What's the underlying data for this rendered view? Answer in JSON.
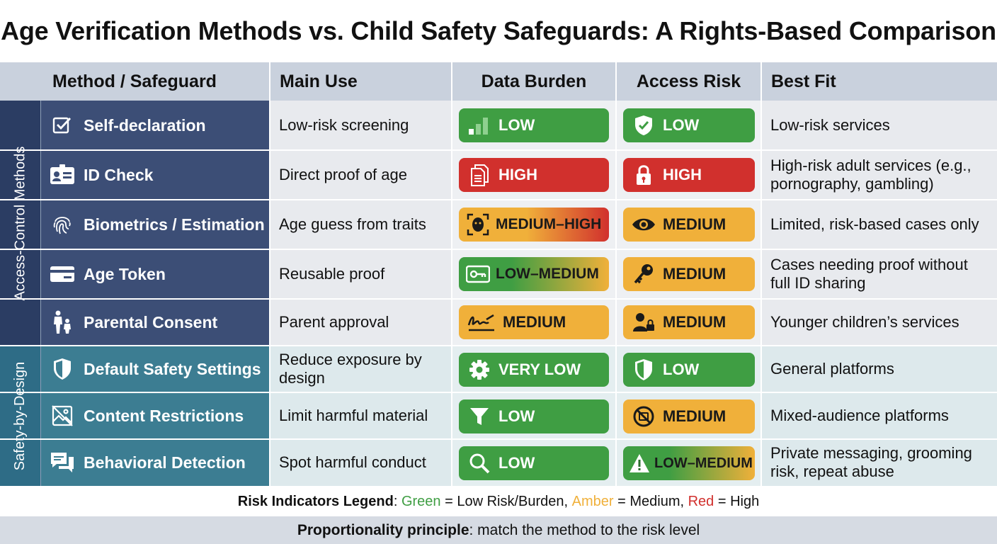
{
  "title": "Age Verification Methods vs. Child Safety Safeguards: A Rights-Based Comparison",
  "headers": {
    "method": "Method / Safeguard",
    "main_use": "Main Use",
    "data_burden": "Data Burden",
    "access_risk": "Access Risk",
    "best_fit": "Best Fit"
  },
  "groups": {
    "access_control": "Access-Control Methods",
    "safety_by_design": "Safety-by-Design"
  },
  "rows": [
    {
      "name": "Self-declaration",
      "icon": "checkbox-icon",
      "main_use": "Low-risk screening",
      "data_burden": {
        "label": "LOW",
        "level": "green",
        "icon": "signal-bars-icon"
      },
      "access_risk": {
        "label": "LOW",
        "level": "green",
        "icon": "shield-check-icon"
      },
      "best_fit": "Low-risk services"
    },
    {
      "name": "ID Check",
      "icon": "id-card-icon",
      "main_use": "Direct proof of age",
      "data_burden": {
        "label": "HIGH",
        "level": "red",
        "icon": "documents-icon"
      },
      "access_risk": {
        "label": "HIGH",
        "level": "red",
        "icon": "lock-icon"
      },
      "best_fit": "High-risk adult services (e.g., pornography, gambling)"
    },
    {
      "name": "Biometrics / Estimation",
      "icon": "fingerprint-icon",
      "main_use": "Age guess from traits",
      "data_burden": {
        "label": "MEDIUM–HIGH",
        "level": "amber-red",
        "icon": "face-scan-icon"
      },
      "access_risk": {
        "label": "MEDIUM",
        "level": "amber",
        "icon": "eye-icon"
      },
      "best_fit": "Limited, risk-based cases only"
    },
    {
      "name": "Age Token",
      "icon": "card-icon",
      "main_use": "Reusable proof",
      "data_burden": {
        "label": "LOW–MEDIUM",
        "level": "green-amber",
        "icon": "key-card-icon"
      },
      "access_risk": {
        "label": "MEDIUM",
        "level": "amber",
        "icon": "key-icon"
      },
      "best_fit": "Cases needing proof without full ID sharing"
    },
    {
      "name": "Parental Consent",
      "icon": "parent-child-icon",
      "main_use": "Parent approval",
      "data_burden": {
        "label": "MEDIUM",
        "level": "amber",
        "icon": "signature-icon"
      },
      "access_risk": {
        "label": "MEDIUM",
        "level": "amber",
        "icon": "user-lock-icon"
      },
      "best_fit": "Younger children’s services"
    },
    {
      "name": "Default Safety Settings",
      "icon": "shield-icon",
      "main_use": "Reduce exposure by design",
      "data_burden": {
        "label": "VERY LOW",
        "level": "green",
        "icon": "gear-icon"
      },
      "access_risk": {
        "label": "LOW",
        "level": "green",
        "icon": "shield-icon"
      },
      "best_fit": "General platforms"
    },
    {
      "name": "Content Restrictions",
      "icon": "image-blocked-icon",
      "main_use": "Limit harmful material",
      "data_burden": {
        "label": "LOW",
        "level": "green",
        "icon": "filter-icon"
      },
      "access_risk": {
        "label": "MEDIUM",
        "level": "amber",
        "icon": "no-entry-icon"
      },
      "best_fit": "Mixed-audience platforms"
    },
    {
      "name": "Behavioral Detection",
      "icon": "chat-bubbles-icon",
      "main_use": "Spot harmful conduct",
      "data_burden": {
        "label": "LOW",
        "level": "green",
        "icon": "search-icon"
      },
      "access_risk": {
        "label": "LOW–MEDIUM",
        "level": "green-amber",
        "icon": "warning-icon"
      },
      "best_fit": "Private messaging, grooming risk, repeat abuse"
    }
  ],
  "legend": {
    "label": "Risk Indicators Legend",
    "green_word": "Green",
    "green_text": " = Low Risk/Burden, ",
    "amber_word": "Amber",
    "amber_text": " = Medium, ",
    "red_word": "Red",
    "red_text": " = High"
  },
  "footer": {
    "bold": "Proportionality principle",
    "text": ": match the method to the risk level"
  },
  "colors": {
    "header_bg": "#c9d1dd",
    "access_group_bg": "#2b3d63",
    "access_row_bg": "#3c4e76",
    "design_group_bg": "#2e6c86",
    "design_row_bg": "#3c7d92",
    "green": "#3f9e43",
    "amber": "#f0b03a",
    "red": "#d1302d"
  }
}
